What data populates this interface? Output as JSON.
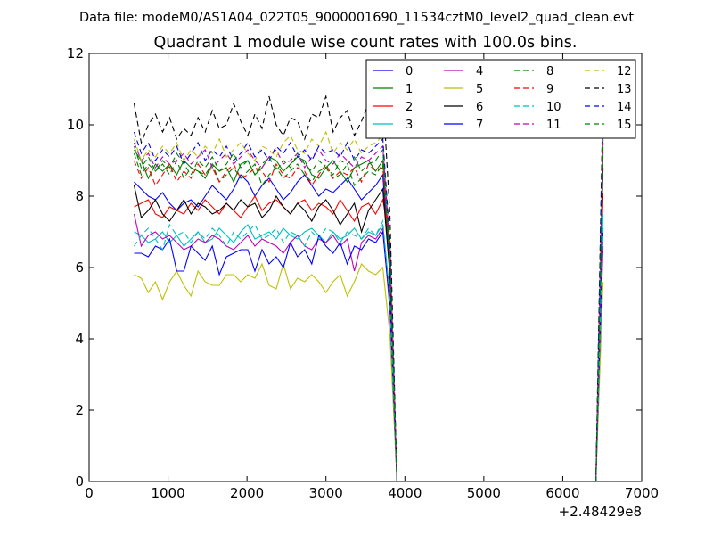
{
  "chart_data": {
    "type": "line",
    "suptitle": "Data file: modeM0/AS1A04_022T05_9000001690_11534cztM0_level2_quad_clean.evt",
    "title": "Quadrant 1 module wise count rates with 100.0s bins.",
    "xlabel": "",
    "ylabel": "",
    "xlim": [
      0,
      7000
    ],
    "ylim": [
      0,
      12
    ],
    "x_offset_label": "+2.48429e8",
    "xticks": [
      0,
      1000,
      2000,
      3000,
      4000,
      5000,
      6000,
      7000
    ],
    "yticks": [
      0,
      2,
      4,
      6,
      8,
      10,
      12
    ],
    "xtick_labels": [
      "0",
      "1000",
      "2000",
      "3000",
      "4000",
      "5000",
      "6000",
      "7000"
    ],
    "ytick_labels": [
      "0",
      "2",
      "4",
      "6",
      "8",
      "10",
      "12"
    ],
    "grid": false,
    "legend_position": "top-right",
    "legend_columns": 4,
    "series": [
      {
        "name": "0",
        "color": "#0000ff",
        "dash": "solid",
        "y": [
          8.4,
          8.2,
          8.0,
          7.9,
          8.1,
          7.8,
          7.6,
          7.8,
          7.9,
          7.7,
          8.0,
          8.3,
          8.1,
          7.9,
          8.2,
          8.6,
          8.4,
          8.0,
          8.3,
          8.5,
          8.2,
          7.9,
          8.1,
          8.4,
          8.6,
          8.3,
          8.0,
          8.2,
          8.1,
          8.3,
          8.5,
          8.2,
          7.9,
          8.1,
          8.3,
          8.6,
          5.8,
          0,
          0,
          0,
          0,
          0,
          0,
          0,
          0,
          0,
          0,
          0,
          0,
          0,
          0,
          0,
          0,
          0,
          0,
          0,
          0,
          0,
          0,
          0,
          0,
          0,
          0,
          0,
          0,
          0,
          9.6
        ]
      },
      {
        "name": "1",
        "color": "#008000",
        "dash": "solid",
        "y": [
          9.3,
          9.0,
          8.5,
          8.9,
          8.7,
          8.9,
          8.6,
          9.0,
          8.8,
          8.7,
          8.5,
          8.9,
          8.7,
          8.8,
          8.4,
          8.9,
          9.0,
          8.6,
          8.8,
          9.1,
          9.0,
          8.7,
          8.9,
          9.1,
          9.0,
          8.6,
          8.5,
          8.8,
          9.0,
          8.7,
          8.4,
          8.8,
          8.9,
          9.0,
          8.7,
          9.0,
          6.0,
          0,
          0,
          0,
          0,
          0,
          0,
          0,
          0,
          0,
          0,
          0,
          0,
          0,
          0,
          0,
          0,
          0,
          0,
          0,
          0,
          0,
          0,
          0,
          0,
          0,
          0,
          0,
          0,
          0,
          9.2
        ]
      },
      {
        "name": "2",
        "color": "#ff0000",
        "dash": "solid",
        "y": [
          7.7,
          7.8,
          7.9,
          7.5,
          7.4,
          7.7,
          7.6,
          7.5,
          7.8,
          7.6,
          7.9,
          7.7,
          7.5,
          7.8,
          7.6,
          7.4,
          7.7,
          8.0,
          7.6,
          7.8,
          7.9,
          7.7,
          7.5,
          7.8,
          7.9,
          7.6,
          7.8,
          7.7,
          7.5,
          7.9,
          7.6,
          7.3,
          7.7,
          7.8,
          7.5,
          7.9,
          6.8,
          0,
          0,
          0,
          0,
          0,
          0,
          0,
          0,
          0,
          0,
          0,
          0,
          0,
          0,
          0,
          0,
          0,
          0,
          0,
          0,
          0,
          0,
          0,
          0,
          0,
          0,
          0,
          0,
          0,
          8.1
        ]
      },
      {
        "name": "3",
        "color": "#00bfbf",
        "dash": "solid",
        "y": [
          7.0,
          6.9,
          6.7,
          6.8,
          7.0,
          6.7,
          6.9,
          6.6,
          6.8,
          7.0,
          6.7,
          6.8,
          7.1,
          6.9,
          6.7,
          7.0,
          7.2,
          6.8,
          6.9,
          7.0,
          6.8,
          7.1,
          6.9,
          6.8,
          7.0,
          7.1,
          6.9,
          6.7,
          7.0,
          6.8,
          6.9,
          7.1,
          6.8,
          7.0,
          6.9,
          7.2,
          5.2,
          0,
          0,
          0,
          0,
          0,
          0,
          0,
          0,
          0,
          0,
          0,
          0,
          0,
          0,
          0,
          0,
          0,
          0,
          0,
          0,
          0,
          0,
          0,
          0,
          0,
          0,
          0,
          0,
          0,
          7.5
        ]
      },
      {
        "name": "4",
        "color": "#bf00bf",
        "dash": "solid",
        "y": [
          7.5,
          6.6,
          6.9,
          7.0,
          6.8,
          6.9,
          6.7,
          6.5,
          6.6,
          6.8,
          6.7,
          6.9,
          6.8,
          6.6,
          6.5,
          6.7,
          6.9,
          6.6,
          6.8,
          6.7,
          6.6,
          6.4,
          6.7,
          6.9,
          6.6,
          6.5,
          6.8,
          6.7,
          6.9,
          6.6,
          6.8,
          5.9,
          6.7,
          6.9,
          6.8,
          7.1,
          4.8,
          0,
          0,
          0,
          0,
          0,
          0,
          0,
          0,
          0,
          0,
          0,
          0,
          0,
          0,
          0,
          0,
          0,
          0,
          0,
          0,
          0,
          0,
          0,
          0,
          0,
          0,
          0,
          0,
          0,
          6.6
        ]
      },
      {
        "name": "5",
        "color": "#bfbf00",
        "dash": "solid",
        "y": [
          5.8,
          5.7,
          5.3,
          5.6,
          5.1,
          5.6,
          5.9,
          5.5,
          5.2,
          5.9,
          5.6,
          5.5,
          5.5,
          5.8,
          5.8,
          5.6,
          5.8,
          5.7,
          6.1,
          5.5,
          5.4,
          6.1,
          5.4,
          5.7,
          5.6,
          5.8,
          5.6,
          5.3,
          5.6,
          5.8,
          5.2,
          5.6,
          6.1,
          5.9,
          5.8,
          6.0,
          4.1,
          0,
          0,
          0,
          0,
          0,
          0,
          0,
          0,
          0,
          0,
          0,
          0,
          0,
          0,
          0,
          0,
          0,
          0,
          0,
          0,
          0,
          0,
          0,
          0,
          0,
          0,
          0,
          0,
          0,
          5.6
        ]
      },
      {
        "name": "6",
        "color": "#000000",
        "dash": "solid",
        "y": [
          8.3,
          7.4,
          7.6,
          7.9,
          7.5,
          7.3,
          7.6,
          7.9,
          7.5,
          7.8,
          7.7,
          7.5,
          7.6,
          7.8,
          7.6,
          7.9,
          7.7,
          7.8,
          7.4,
          7.6,
          8.0,
          7.7,
          7.5,
          7.8,
          7.6,
          7.3,
          7.7,
          7.9,
          7.6,
          7.2,
          7.5,
          7.8,
          7.0,
          7.6,
          7.9,
          8.2,
          5.8,
          0,
          0,
          0,
          0,
          0,
          0,
          0,
          0,
          0,
          0,
          0,
          0,
          0,
          0,
          0,
          0,
          0,
          0,
          0,
          0,
          0,
          0,
          0,
          0,
          0,
          0,
          0,
          0,
          0,
          8.8
        ]
      },
      {
        "name": "7",
        "color": "#0000ff",
        "dash": "solid",
        "y": [
          6.4,
          6.4,
          6.3,
          6.6,
          6.5,
          6.8,
          5.9,
          5.9,
          6.6,
          6.4,
          6.2,
          6.6,
          5.8,
          6.3,
          6.4,
          6.5,
          6.5,
          5.9,
          6.5,
          6.1,
          6.3,
          6.0,
          6.7,
          6.3,
          6.5,
          6.1,
          6.9,
          6.6,
          6.4,
          6.7,
          6.1,
          6.6,
          6.5,
          6.8,
          6.7,
          7.0,
          5.0,
          0,
          0,
          0,
          0,
          0,
          0,
          0,
          0,
          0,
          0,
          0,
          0,
          0,
          0,
          0,
          0,
          0,
          0,
          0,
          0,
          0,
          0,
          0,
          0,
          0,
          0,
          0,
          0,
          0,
          7.1
        ]
      },
      {
        "name": "8",
        "color": "#008000",
        "dash": "dashed",
        "y": [
          9.2,
          8.6,
          8.9,
          8.7,
          8.9,
          8.6,
          9.0,
          8.5,
          8.8,
          8.7,
          8.6,
          8.9,
          8.4,
          8.6,
          8.8,
          8.5,
          8.7,
          8.9,
          8.3,
          8.6,
          8.8,
          8.5,
          8.7,
          8.9,
          8.6,
          8.4,
          8.7,
          8.8,
          8.5,
          8.6,
          8.9,
          8.3,
          8.5,
          8.7,
          8.6,
          8.9,
          6.2,
          0,
          0,
          0,
          0,
          0,
          0,
          0,
          0,
          0,
          0,
          0,
          0,
          0,
          0,
          0,
          0,
          0,
          0,
          0,
          0,
          0,
          0,
          0,
          0,
          0,
          0,
          0,
          0,
          0,
          9.0
        ]
      },
      {
        "name": "9",
        "color": "#ff0000",
        "dash": "dashed",
        "y": [
          9.0,
          8.5,
          8.8,
          8.3,
          8.6,
          8.9,
          8.4,
          8.7,
          8.5,
          8.9,
          8.6,
          8.8,
          8.4,
          8.7,
          8.9,
          8.5,
          8.6,
          8.8,
          8.7,
          8.4,
          8.9,
          8.6,
          8.5,
          8.8,
          8.7,
          8.3,
          8.6,
          8.9,
          8.5,
          8.7,
          8.6,
          8.8,
          8.4,
          8.9,
          8.7,
          8.8,
          6.4,
          0,
          0,
          0,
          0,
          0,
          0,
          0,
          0,
          0,
          0,
          0,
          0,
          0,
          0,
          0,
          0,
          0,
          0,
          0,
          0,
          0,
          0,
          0,
          0,
          0,
          0,
          0,
          0,
          0,
          9.3
        ]
      },
      {
        "name": "10",
        "color": "#00bfbf",
        "dash": "dashed",
        "y": [
          6.6,
          6.9,
          7.1,
          6.8,
          6.5,
          7.2,
          6.9,
          7.0,
          6.7,
          7.0,
          6.8,
          7.1,
          6.9,
          6.6,
          7.0,
          6.8,
          7.0,
          7.2,
          6.8,
          6.9,
          7.1,
          6.7,
          7.0,
          6.9,
          6.6,
          7.0,
          6.8,
          7.1,
          7.0,
          6.7,
          7.0,
          6.9,
          6.8,
          7.1,
          6.9,
          7.3,
          5.1,
          0,
          0,
          0,
          0,
          0,
          0,
          0,
          0,
          0,
          0,
          0,
          0,
          0,
          0,
          0,
          0,
          0,
          0,
          0,
          0,
          0,
          0,
          0,
          0,
          0,
          0,
          0,
          0,
          0,
          7.2
        ]
      },
      {
        "name": "11",
        "color": "#bf00bf",
        "dash": "dashed",
        "y": [
          9.5,
          9.0,
          9.2,
          8.8,
          9.1,
          8.9,
          9.0,
          9.2,
          8.9,
          9.1,
          9.3,
          8.8,
          9.0,
          9.2,
          8.9,
          9.1,
          9.3,
          9.0,
          8.8,
          9.1,
          9.3,
          8.9,
          9.0,
          9.2,
          8.8,
          9.1,
          9.3,
          9.0,
          8.9,
          9.2,
          9.0,
          8.8,
          9.1,
          9.0,
          9.2,
          9.4,
          6.5,
          0,
          0,
          0,
          0,
          0,
          0,
          0,
          0,
          0,
          0,
          0,
          0,
          0,
          0,
          0,
          0,
          0,
          0,
          0,
          0,
          0,
          0,
          0,
          0,
          0,
          0,
          0,
          0,
          0,
          9.5
        ]
      },
      {
        "name": "12",
        "color": "#bfbf00",
        "dash": "dashed",
        "y": [
          9.6,
          9.0,
          9.3,
          9.1,
          9.4,
          9.2,
          9.5,
          9.0,
          9.3,
          9.1,
          9.4,
          9.2,
          9.6,
          9.1,
          9.3,
          9.5,
          9.2,
          9.0,
          9.4,
          9.3,
          9.1,
          9.5,
          9.7,
          9.3,
          9.2,
          9.6,
          9.4,
          9.8,
          9.2,
          9.5,
          9.3,
          9.6,
          9.2,
          9.4,
          9.5,
          9.7,
          6.8,
          0,
          0,
          0,
          0,
          0,
          0,
          0,
          0,
          0,
          0,
          0,
          0,
          0,
          0,
          0,
          0,
          0,
          0,
          0,
          0,
          0,
          0,
          0,
          0,
          0,
          0,
          0,
          0,
          0,
          9.9
        ]
      },
      {
        "name": "13",
        "color": "#000000",
        "dash": "dashed",
        "y": [
          10.6,
          9.5,
          10.0,
          10.3,
          9.8,
          10.2,
          9.6,
          9.9,
          9.7,
          10.2,
          9.8,
          10.4,
          9.9,
          10.0,
          10.6,
          10.1,
          9.7,
          10.3,
          9.9,
          10.8,
          10.0,
          9.7,
          10.2,
          10.1,
          9.6,
          10.3,
          10.2,
          10.8,
          9.8,
          10.2,
          10.4,
          9.7,
          10.1,
          10.6,
          9.9,
          10.9,
          7.5,
          0,
          0,
          0,
          0,
          0,
          0,
          0,
          0,
          0,
          0,
          0,
          0,
          0,
          0,
          0,
          0,
          0,
          0,
          0,
          0,
          0,
          0,
          0,
          0,
          0,
          0,
          0,
          0,
          0,
          11.0
        ]
      },
      {
        "name": "14",
        "color": "#0000ff",
        "dash": "dashed",
        "y": [
          9.8,
          9.2,
          9.5,
          9.0,
          9.3,
          9.1,
          9.4,
          8.9,
          9.2,
          9.5,
          9.0,
          9.3,
          9.1,
          9.4,
          9.0,
          9.2,
          9.5,
          9.1,
          9.3,
          9.0,
          9.4,
          9.2,
          9.5,
          9.1,
          9.3,
          9.0,
          9.4,
          9.2,
          9.3,
          9.1,
          9.5,
          9.0,
          9.3,
          9.2,
          9.4,
          9.6,
          6.7,
          0,
          0,
          0,
          0,
          0,
          0,
          0,
          0,
          0,
          0,
          0,
          0,
          0,
          0,
          0,
          0,
          0,
          0,
          0,
          0,
          0,
          0,
          0,
          0,
          0,
          0,
          0,
          0,
          0,
          10.8
        ]
      },
      {
        "name": "15",
        "color": "#008000",
        "dash": "dashed",
        "y": [
          9.4,
          8.8,
          9.1,
          8.7,
          9.0,
          8.8,
          9.2,
          8.9,
          8.6,
          9.0,
          8.8,
          9.1,
          8.7,
          8.9,
          9.2,
          8.8,
          9.0,
          8.6,
          8.9,
          9.1,
          8.7,
          9.0,
          8.8,
          9.2,
          8.9,
          8.7,
          9.0,
          8.8,
          8.6,
          9.0,
          8.9,
          9.1,
          8.7,
          8.9,
          9.0,
          9.3,
          6.3,
          0,
          0,
          0,
          0,
          0,
          0,
          0,
          0,
          0,
          0,
          0,
          0,
          0,
          0,
          0,
          0,
          0,
          0,
          0,
          0,
          0,
          0,
          0,
          0,
          0,
          0,
          0,
          0,
          0,
          9.4
        ]
      }
    ]
  }
}
